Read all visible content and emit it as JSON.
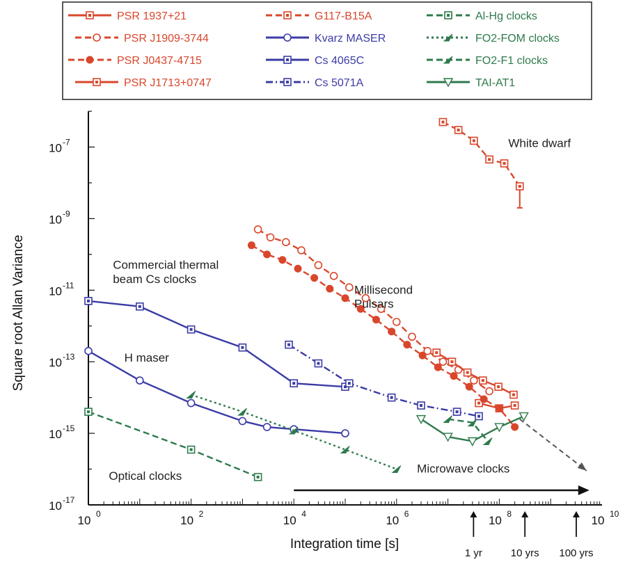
{
  "chart_data": {
    "type": "line",
    "xlabel": "Integration time [s]",
    "ylabel": "Square root Allan Variance",
    "x_scale": "log",
    "y_scale": "log",
    "xlim": [
      1,
      10000000000
    ],
    "ylim": [
      1e-17,
      1e-06
    ],
    "x_ticks": [
      {
        "value": 1,
        "base": "10",
        "exp": "0"
      },
      {
        "value": 100,
        "base": "10",
        "exp": "2"
      },
      {
        "value": 10000,
        "base": "10",
        "exp": "4"
      },
      {
        "value": 1000000,
        "base": "10",
        "exp": "6"
      },
      {
        "value": 100000000,
        "base": "10",
        "exp": "8"
      },
      {
        "value": 10000000000,
        "base": "10",
        "exp": "10"
      }
    ],
    "y_ticks": [
      {
        "value": 1e-17,
        "base": "10",
        "exp": "-17"
      },
      {
        "value": 1e-15,
        "base": "10",
        "exp": "-15"
      },
      {
        "value": 1e-13,
        "base": "10",
        "exp": "-13"
      },
      {
        "value": 1e-11,
        "base": "10",
        "exp": "-11"
      },
      {
        "value": 1e-09,
        "base": "10",
        "exp": "-9"
      },
      {
        "value": 1e-07,
        "base": "10",
        "exp": "-7"
      }
    ],
    "grid": false,
    "legend_position": "top",
    "series": [
      {
        "name": "PSR 1937+21",
        "color": "#d9462b",
        "dash": "solid",
        "marker": "square-open",
        "x": [
          40000000.0,
          100000000.0,
          200000000.0
        ],
        "y": [
          7e-15,
          5e-15,
          6e-15
        ]
      },
      {
        "name": "PSR J1909-3744",
        "color": "#d9462b",
        "dash": "dashed",
        "marker": "circle-open",
        "x": [
          2000.0,
          3500.0,
          7000.0,
          14000.0,
          30000.0,
          60000.0,
          120000.0,
          250000.0,
          500000.0,
          1000000.0,
          2000000.0,
          4000000.0,
          8000000.0,
          16000000.0,
          32000000.0,
          64000000.0
        ],
        "y": [
          5e-10,
          3e-10,
          2.2e-10,
          1.3e-10,
          5e-11,
          2.5e-11,
          1.2e-11,
          6e-12,
          3e-12,
          1.3e-12,
          5e-13,
          2e-13,
          1e-13,
          6e-14,
          3e-14,
          1.5e-14
        ]
      },
      {
        "name": "PSR J0437-4715",
        "color": "#d9462b",
        "dash": "dashed",
        "marker": "circle-filled",
        "x": [
          1500.0,
          3000.0,
          6000.0,
          12000.0,
          25000.0,
          50000.0,
          100000.0,
          200000.0,
          400000.0,
          800000.0,
          1600000.0,
          3200000.0,
          6400000.0,
          13000000.0,
          26000000.0,
          50000000.0,
          100000000.0,
          200000000.0
        ],
        "y": [
          1.8e-10,
          1e-10,
          7e-11,
          4e-11,
          2.2e-11,
          1.1e-11,
          6e-12,
          3e-12,
          1.5e-12,
          7e-13,
          3e-13,
          1.5e-13,
          7e-14,
          4e-14,
          2e-14,
          9e-15,
          5e-15,
          1.5e-15
        ]
      },
      {
        "name": "PSR J1713+0747",
        "color": "#d9462b",
        "dash": "solid",
        "marker": "square-open",
        "x": [
          6000000.0,
          12000000.0,
          24000000.0,
          48000000.0,
          96000000.0,
          190000000.0
        ],
        "y": [
          1.8e-13,
          1e-13,
          5e-14,
          3e-14,
          2e-14,
          1.2e-14
        ]
      },
      {
        "name": "G117-B15A",
        "color": "#d9462b",
        "dash": "dashed",
        "marker": "square-open",
        "x": [
          8000000.0,
          16000000.0,
          32000000.0,
          64000000.0,
          125000000.0,
          250000000.0
        ],
        "y": [
          5e-07,
          3e-07,
          1.5e-07,
          4.5e-08,
          3.5e-08,
          8e-09
        ],
        "err_low": [
          null,
          null,
          null,
          null,
          null,
          2e-09
        ]
      },
      {
        "name": "Kvarz MASER",
        "color": "#3b3ba6",
        "dash": "solid",
        "marker": "circle-open",
        "x": [
          1,
          10,
          100,
          1000,
          3000,
          10000,
          100000
        ],
        "y": [
          2e-13,
          3e-14,
          7e-15,
          2.2e-15,
          1.5e-15,
          1.3e-15,
          1e-15
        ]
      },
      {
        "name": "Cs 4065C",
        "color": "#3b3ba6",
        "dash": "solid",
        "marker": "square-open",
        "x": [
          1,
          10,
          100,
          1000,
          10000,
          100000
        ],
        "y": [
          5e-12,
          3.5e-12,
          8e-13,
          2.5e-13,
          2.5e-14,
          2e-14
        ]
      },
      {
        "name": "Cs 5071A",
        "color": "#3b3ba6",
        "dash": "dashdot",
        "marker": "square-open",
        "x": [
          8000,
          30000,
          120000,
          800000,
          3000000,
          15000000,
          40000000
        ],
        "y": [
          3e-13,
          9e-14,
          2.5e-14,
          1e-14,
          6e-15,
          4e-15,
          3e-15
        ]
      },
      {
        "name": "Al-Hg clocks",
        "color": "#2e7a4c",
        "dash": "dashed",
        "marker": "square-open",
        "x": [
          1,
          100,
          2000
        ],
        "y": [
          4e-15,
          3.5e-16,
          6e-17
        ]
      },
      {
        "name": "FO2-FOM clocks",
        "color": "#2e7a4c",
        "dash": "dotted",
        "marker": "arrow-filled",
        "x": [
          100,
          1000,
          10000,
          100000,
          1000000
        ],
        "y": [
          1.2e-14,
          4e-15,
          1.2e-15,
          3.5e-16,
          1e-16
        ]
      },
      {
        "name": "FO2-F1 clocks",
        "color": "#2e7a4c",
        "dash": "dashed",
        "marker": "arrow-filled",
        "x": [
          10000000,
          30000000,
          60000000
        ],
        "y": [
          2.5e-15,
          2e-15,
          6e-16
        ]
      },
      {
        "name": "TAI-AT1",
        "color": "#2e7a4c",
        "dash": "solid",
        "marker": "triangle-down-open",
        "x": [
          3000000,
          10000000,
          30000000,
          100000000,
          300000000
        ],
        "y": [
          2.5e-15,
          8e-16,
          6e-16,
          1.5e-15,
          3e-15
        ]
      }
    ],
    "annotations": [
      {
        "text": "White dwarf",
        "x": 150000000.0,
        "y": 1e-07
      },
      {
        "text": "Millisecond",
        "x": 150000.0,
        "y": 8e-12
      },
      {
        "text": "Pulsars",
        "x": 150000.0,
        "y": 3.2e-12
      },
      {
        "text": "Commercial thermal",
        "x": 3,
        "y": 4e-11
      },
      {
        "text": "beam Cs clocks",
        "x": 3,
        "y": 1.6e-11
      },
      {
        "text": "H maser",
        "x": 5,
        "y": 1e-13
      },
      {
        "text": "Optical clocks",
        "x": 2.5,
        "y": 5e-17
      },
      {
        "text": "Microwave clocks",
        "x": 2500000.0,
        "y": 8e-17
      }
    ],
    "time_markers": [
      {
        "label": "1 yr",
        "x": 31500000.0
      },
      {
        "label": "10 yrs",
        "x": 315000000.0
      },
      {
        "label": "100 yrs",
        "x": 3150000000.0
      }
    ]
  }
}
